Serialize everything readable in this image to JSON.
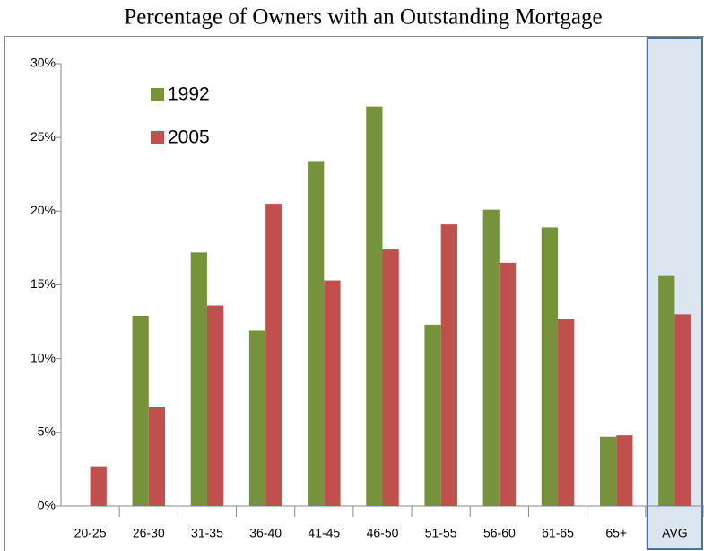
{
  "chart_data": {
    "type": "bar",
    "title": "Percentage of Owners with an Outstanding Mortgage",
    "categories": [
      "20-25",
      "26-30",
      "31-35",
      "36-40",
      "41-45",
      "46-50",
      "51-55",
      "56-60",
      "61-65",
      "65+",
      "AVG"
    ],
    "series": [
      {
        "name": "1992",
        "color": "#76933c",
        "values": [
          null,
          12.9,
          17.2,
          11.9,
          23.4,
          27.1,
          12.3,
          20.1,
          18.9,
          4.7,
          15.6
        ]
      },
      {
        "name": "2005",
        "color": "#c0504d",
        "values": [
          2.7,
          6.7,
          13.6,
          20.5,
          15.3,
          17.4,
          19.1,
          16.5,
          12.7,
          4.8,
          13.0
        ]
      }
    ],
    "ylim": [
      0,
      30
    ],
    "yticks": [
      {
        "value": 0,
        "label": "0%"
      },
      {
        "value": 5,
        "label": "5%"
      },
      {
        "value": 10,
        "label": "10%"
      },
      {
        "value": 15,
        "label": "15%"
      },
      {
        "value": 20,
        "label": "20%"
      },
      {
        "value": 25,
        "label": "25%"
      },
      {
        "value": 30,
        "label": "30%"
      }
    ],
    "grid": false
  }
}
